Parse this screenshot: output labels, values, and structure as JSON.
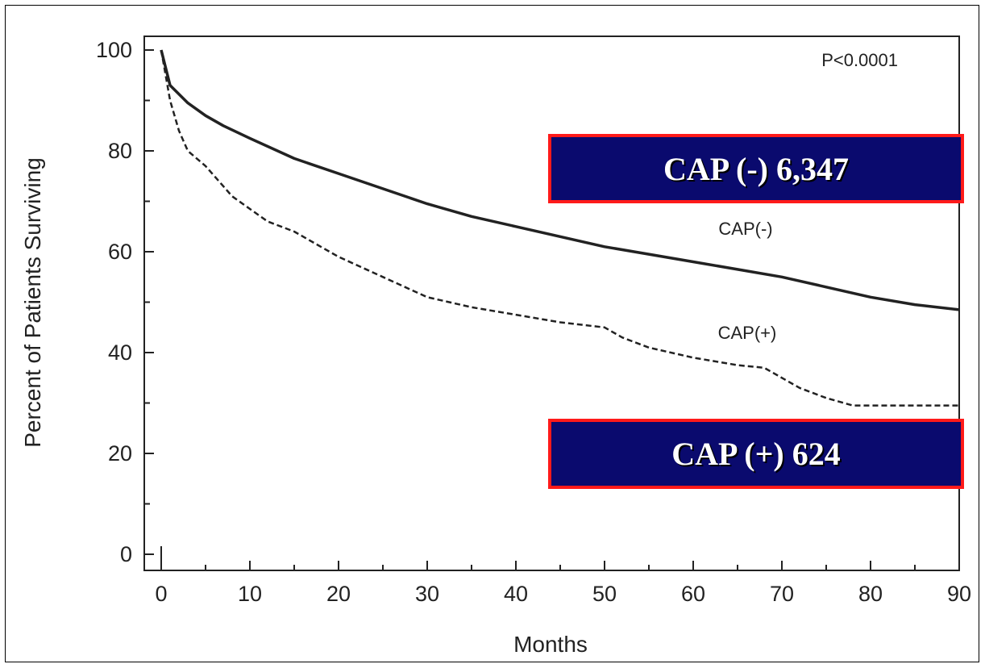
{
  "chart_data": {
    "type": "line",
    "xlabel": "Months",
    "ylabel": "Percent of Patients Surviving",
    "xlim": [
      0,
      90
    ],
    "ylim": [
      0,
      100
    ],
    "x_ticks": [
      0,
      10,
      20,
      30,
      40,
      50,
      60,
      70,
      80,
      90
    ],
    "y_ticks": [
      0,
      20,
      40,
      60,
      80,
      100
    ],
    "annotations": [
      "P<0.0001"
    ],
    "series": [
      {
        "name": "CAP(-)",
        "line_style": "solid",
        "points": [
          [
            0,
            100
          ],
          [
            1,
            93
          ],
          [
            3,
            89.5
          ],
          [
            5,
            87
          ],
          [
            7,
            85
          ],
          [
            10,
            82.5
          ],
          [
            15,
            78.5
          ],
          [
            20,
            75.5
          ],
          [
            25,
            72.5
          ],
          [
            30,
            69.5
          ],
          [
            35,
            67
          ],
          [
            40,
            65
          ],
          [
            45,
            63
          ],
          [
            50,
            61
          ],
          [
            55,
            59.5
          ],
          [
            60,
            58
          ],
          [
            65,
            56.5
          ],
          [
            70,
            55
          ],
          [
            75,
            53
          ],
          [
            80,
            51
          ],
          [
            85,
            49.5
          ],
          [
            90,
            48.5
          ]
        ]
      },
      {
        "name": "CAP(+)",
        "line_style": "dashed",
        "points": [
          [
            0,
            100
          ],
          [
            1,
            90
          ],
          [
            2,
            84
          ],
          [
            3,
            80
          ],
          [
            5,
            77
          ],
          [
            8,
            71
          ],
          [
            12,
            66
          ],
          [
            15,
            64
          ],
          [
            18,
            61
          ],
          [
            20,
            59
          ],
          [
            25,
            55
          ],
          [
            30,
            51
          ],
          [
            35,
            49
          ],
          [
            40,
            47.5
          ],
          [
            45,
            46
          ],
          [
            50,
            45
          ],
          [
            52,
            43
          ],
          [
            55,
            41
          ],
          [
            60,
            39
          ],
          [
            65,
            37.5
          ],
          [
            68,
            37
          ],
          [
            70,
            35
          ],
          [
            72,
            33
          ],
          [
            75,
            31
          ],
          [
            78,
            29.5
          ],
          [
            90,
            29.5
          ]
        ]
      }
    ]
  },
  "callouts": {
    "neg": "CAP (-) 6,347",
    "pos": "CAP (+) 624"
  },
  "colors": {
    "callout_bg": "#0a0a6e",
    "callout_border": "#ff1a1a",
    "line": "#222222"
  }
}
